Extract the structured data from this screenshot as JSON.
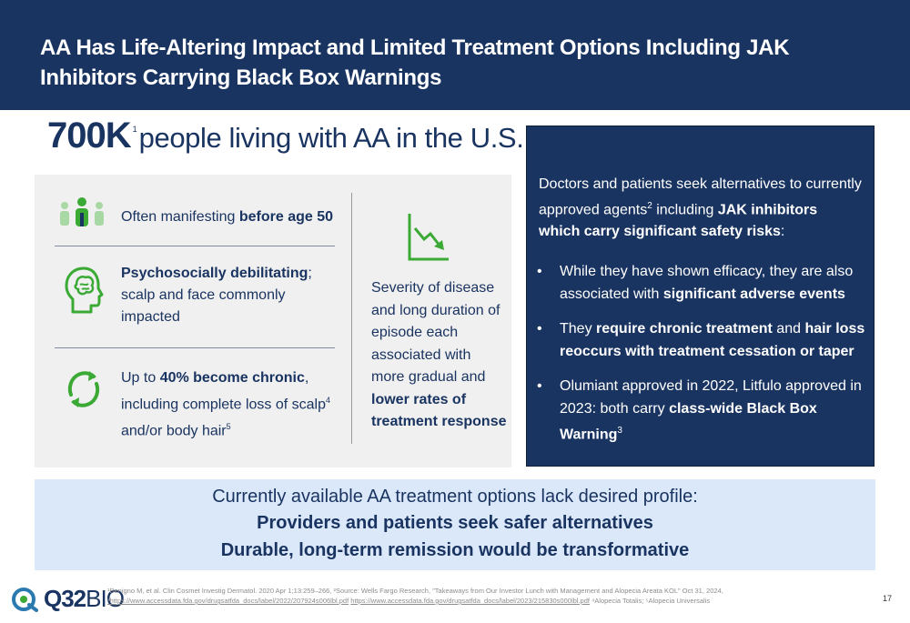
{
  "header": {
    "title": "AA Has Life-Altering Impact and Limited Treatment Options Including JAK Inhibitors Carrying Black Box Warnings"
  },
  "stat": {
    "value": "700K",
    "footnote": "1",
    "text": "people living with AA in the U.S."
  },
  "left": {
    "item1": {
      "pre": "Often manifesting ",
      "bold": "before age 50"
    },
    "item2": {
      "bold": "Psychosocially debilitating",
      "post": "; scalp and face commonly impacted"
    },
    "item3": {
      "pre": "Up to ",
      "bold": "40% become chronic",
      "mid": ", including complete loss of scalp",
      "sup1": "4",
      "mid2": " and/or body hair",
      "sup2": "5"
    },
    "middle": {
      "pre": "Severity of disease and long duration of episode each associated with more gradual and ",
      "bold": "lower rates of treatment response"
    }
  },
  "right": {
    "intro": {
      "pre": "Doctors and patients seek alternatives to currently approved agents",
      "sup": "2",
      "mid": " including ",
      "bold": "JAK inhibitors which carry significant safety risks",
      "post": ":"
    },
    "bullet_char": "•",
    "bullets": [
      {
        "pre": "While they have shown efficacy, they are also associated with ",
        "bold": "significant adverse events"
      },
      {
        "pre": "They ",
        "bold": "require chronic treatment",
        "mid": " and ",
        "bold2": "hair loss reoccurs with treatment cessation or taper"
      },
      {
        "pre": "Olumiant approved in 2022, Litfulo approved in 2023: both carry ",
        "bold": "class-wide Black Box Warning",
        "sup": "3"
      }
    ]
  },
  "band": {
    "line1": "Currently available AA treatment options lack desired profile:",
    "line2": "Providers and patients seek safer alternatives",
    "line3": "Durable, long-term remission would be transformative"
  },
  "logo": {
    "brand": "Q32",
    "suffix": "BIO"
  },
  "footnote": {
    "line1": "¹Benigno M, et al. Clin Cosmet Investig Dermatol. 2020 Apr 1;13:259–266, ²Source: Wells Fargo Research, \"Takeaways from Our Investor Lunch with Management and Alopecia Areata KOL\" Oct 31, 2024,",
    "link1": "³https://www.accessdata.fda.gov/drugsatfda_docs/label/2022/207924s006lbl.pdf",
    "link2": "https://www.accessdata.fda.gov/drugsatfda_docs/label/2023/215830s000lbl.pdf",
    "tail": "⁴Alopecia  Totalis; ⁵Alopecia  Universalis"
  },
  "page_number": "17",
  "colors": {
    "navy": "#1a3461",
    "accent_green": "#3aaa35",
    "panel_gray": "#f0f0f0",
    "band_blue": "#dbe8fa"
  },
  "icons": [
    "people-icon",
    "head-brain-icon",
    "refresh-arrows-icon",
    "decline-chart-icon",
    "q32-logo-icon"
  ]
}
